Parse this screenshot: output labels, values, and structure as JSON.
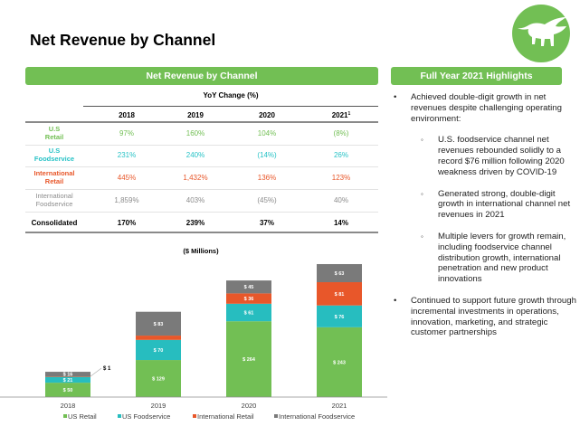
{
  "page": {
    "title": "Net Revenue by Channel"
  },
  "logo": {
    "icon": "highland-cow-logo-icon",
    "color": "#72bf54"
  },
  "table_section": {
    "header": "Net Revenue by Channel",
    "caption": "YoY Change (%)",
    "columns": [
      "2018",
      "2019",
      "2020",
      "2021"
    ],
    "footnote_marker": "1",
    "rows": [
      {
        "label_line1": "U.S",
        "label_line2": "Retail",
        "color": "#72bf54",
        "bold": false,
        "values": [
          "97%",
          "160%",
          "104%",
          "(8%)"
        ]
      },
      {
        "label_line1": "U.S",
        "label_line2": "Foodservice",
        "color": "#27c2c6",
        "bold": false,
        "values": [
          "231%",
          "240%",
          "(14%)",
          "26%"
        ]
      },
      {
        "label_line1": "International",
        "label_line2": "Retail",
        "color": "#e8572a",
        "bold": false,
        "values": [
          "445%",
          "1,432%",
          "136%",
          "123%"
        ]
      },
      {
        "label_line1": "International",
        "label_line2": "Foodservice",
        "color": "#8c8c8c",
        "bold": false,
        "values": [
          "1,859%",
          "403%",
          "(45%)",
          "40%"
        ]
      },
      {
        "label_line1": "Consolidated",
        "label_line2": "",
        "color": "#000000",
        "bold": true,
        "values": [
          "170%",
          "239%",
          "37%",
          "14%"
        ]
      }
    ]
  },
  "highlights": {
    "header": "Full Year 2021 Highlights",
    "items": [
      {
        "level": 1,
        "text": "Achieved double-digit growth in net revenues despite challenging operating environment:"
      },
      {
        "level": 2,
        "text": "U.S. foodservice channel net revenues rebounded solidly to a record $76 million following 2020 weakness driven by COVID-19"
      },
      {
        "level": 2,
        "text": "Generated strong, double-digit growth in international channel net revenues in 2021"
      },
      {
        "level": 2,
        "text": "Multiple levers for growth remain, including foodservice channel distribution growth, international penetration and new product innovations"
      },
      {
        "level": 1,
        "text": "Continued to support future growth through incremental investments in operations, innovation, marketing, and strategic customer partnerships"
      }
    ]
  },
  "chart_data": {
    "type": "bar",
    "stacked": true,
    "title": "($ Millions)",
    "xlabel": "",
    "ylabel": "",
    "categories": [
      "2018",
      "2019",
      "2020",
      "2021"
    ],
    "series": [
      {
        "name": "US Retail",
        "color": "#72bf54",
        "values": [
          50,
          129,
          264,
          243
        ],
        "labels": [
          "$ 50",
          "$ 129",
          "$ 264",
          "$ 243"
        ]
      },
      {
        "name": "US Foodservice",
        "color": "#27bdbf",
        "values": [
          21,
          70,
          61,
          76
        ],
        "labels": [
          "$ 21",
          "$ 70",
          "$ 61",
          "$ 76"
        ]
      },
      {
        "name": "International Retail",
        "color": "#e8572a",
        "values": [
          1,
          15,
          36,
          81
        ],
        "labels": [
          "$ 1",
          "$ 15",
          "$ 36",
          "$ 81"
        ]
      },
      {
        "name": "International Foodservice",
        "color": "#7a7a7a",
        "values": [
          16,
          83,
          45,
          63
        ],
        "labels": [
          "$ 16",
          "$ 83",
          "$ 45",
          "$ 63"
        ]
      }
    ],
    "callouts": [
      {
        "category": "2018",
        "series": "International Retail",
        "text": "$ 1"
      }
    ],
    "ylim": [
      0,
      470
    ],
    "grid": false,
    "legend": "bottom"
  }
}
